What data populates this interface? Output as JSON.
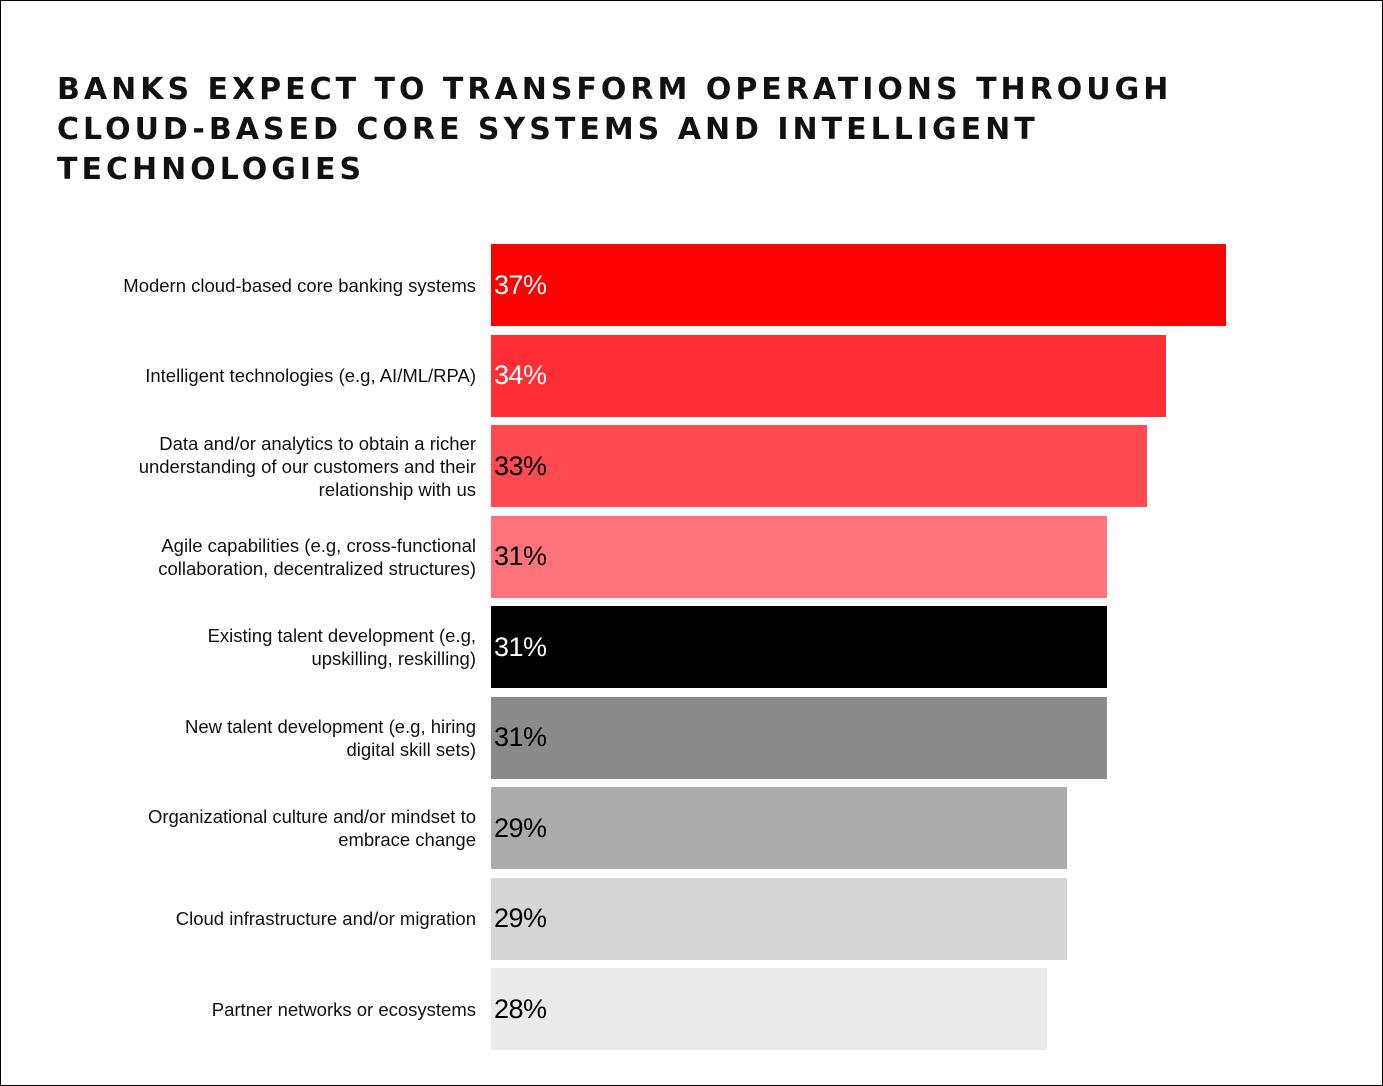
{
  "title": "BANKS EXPECT TO TRANSFORM OPERATIONS THROUGH CLOUD-BASED CORE SYSTEMS AND INTELLIGENT TECHNOLOGIES",
  "chart_data": {
    "type": "bar",
    "orientation": "horizontal",
    "title": "BANKS EXPECT TO TRANSFORM OPERATIONS THROUGH CLOUD-BASED CORE SYSTEMS AND INTELLIGENT TECHNOLOGIES",
    "xlabel": "",
    "ylabel": "",
    "xlim": [
      0,
      40
    ],
    "grid": false,
    "categories": [
      "Modern cloud-based core banking systems",
      "Intelligent technologies (e.g, AI/ML/RPA)",
      "Data and/or analytics to obtain a richer understanding of our customers and their relationship with us",
      "Agile capabilities (e.g, cross-functional collaboration, decentralized structures)",
      "Existing talent development (e.g, upskilling, reskilling)",
      "New talent development (e.g, hiring digital skill sets)",
      "Organizational culture and/or mindset to embrace change",
      "Cloud infrastructure and/or migration",
      "Partner networks or ecosystems"
    ],
    "values": [
      37,
      34,
      33,
      31,
      31,
      31,
      29,
      29,
      28
    ],
    "value_labels": [
      "37%",
      "34%",
      "33%",
      "31%",
      "31%",
      "31%",
      "29%",
      "29%",
      "28%"
    ],
    "bar_colors": [
      "#ff0000",
      "#ff2e35",
      "#ff4a50",
      "#ff737a",
      "#000000",
      "#8a8a8a",
      "#ababab",
      "#d6d6d6",
      "#eaeaea"
    ],
    "label_colors": [
      "#ffffff",
      "#ffffff",
      "#000000",
      "#000000",
      "#ffffff",
      "#000000",
      "#000000",
      "#000000",
      "#000000"
    ]
  }
}
